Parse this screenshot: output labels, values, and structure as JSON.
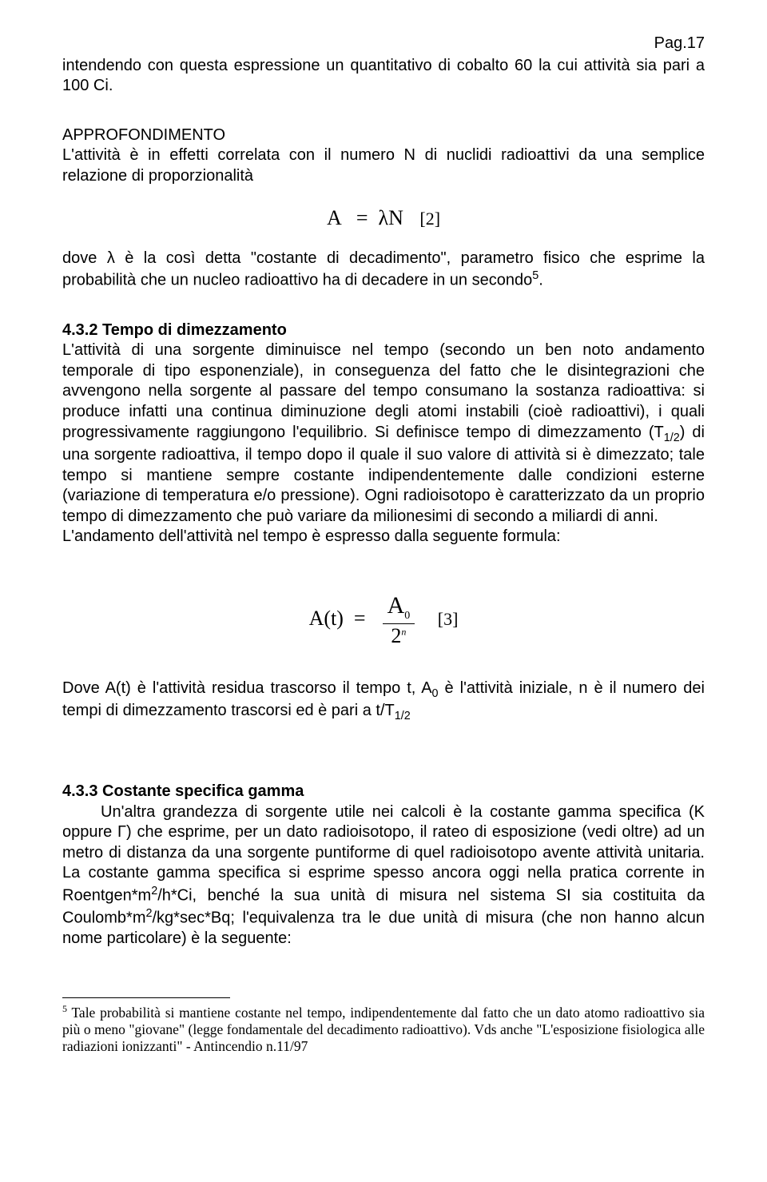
{
  "page": {
    "number_label": "Pag.17"
  },
  "p1": "intendendo con questa espressione un quantitativo di cobalto 60 la cui attività sia pari a 100 Ci.",
  "approf_heading": "APPROFONDIMENTO",
  "approf_body": "L'attività è in effetti correlata con il numero N di nuclidi radioattivi da una semplice relazione di proporzionalità",
  "eq2": {
    "lhs": "A",
    "eq": "=",
    "lam": "λ",
    "N": "N",
    "label": "[2]"
  },
  "after_eq2_a": "dove ",
  "after_eq2_lambda": "λ",
  "after_eq2_b": " è la così detta \"costante di decadimento\", parametro fisico che esprime la probabilità che un nucleo radioattivo ha di decadere in un secondo",
  "after_eq2_fn": "5",
  "after_eq2_c": ".",
  "sec432_num": "4.3.2 ",
  "sec432_title": "Tempo di dimezzamento",
  "sec432_body_a": "L'attività di una sorgente diminuisce nel tempo (secondo un ben noto andamento temporale di tipo esponenziale), in conseguenza del fatto che le disintegrazioni che avvengono nella sorgente al passare del tempo consumano la sostanza radioattiva: si produce infatti una continua diminuzione degli atomi instabili (cioè radioattivi), i quali progressivamente raggiungono l'equilibrio. Si definisce tempo di dimezzamento (T",
  "sec432_sub1": "1/2",
  "sec432_body_b": ") di una sorgente radioattiva, il tempo dopo il quale il suo valore di attività si è dimezzato; tale tempo si mantiene sempre costante indipendentemente dalle condizioni esterne (variazione di temperatura e/o pressione). Ogni radioisotopo è caratterizzato da un proprio tempo di dimezzamento che può variare da milionesimi di secondo a miliardi di anni.",
  "sec432_line2": "L'andamento dell'attività nel tempo è espresso dalla seguente formula:",
  "eq3": {
    "lhs": "A(t)",
    "eq": "=",
    "numA": "A",
    "numSub": "0",
    "denBase": "2",
    "denExp": "n",
    "label": "[3]"
  },
  "after_eq3_a": "Dove A(t) è l'attività residua trascorso il tempo t, A",
  "after_eq3_sub0": "0",
  "after_eq3_b": " è l'attività iniziale, n è il numero dei tempi di dimezzamento trascorsi ed è pari a t/T",
  "after_eq3_sub12": "1/2",
  "sec433_num": "4.3.3 ",
  "sec433_title": "Costante specifica gamma",
  "sec433_body_a": "Un'altra grandezza di sorgente utile nei calcoli è la costante gamma specifica (K oppure Γ) che esprime, per un dato radioisotopo, il rateo di esposizione (vedi oltre) ad un metro di distanza da una sorgente puntiforme di quel radioisotopo avente attività unitaria. La costante gamma specifica si esprime spesso ancora oggi nella pratica corrente in Roentgen*m",
  "sec433_sup1": "2",
  "sec433_body_b": "/h*Ci, benché la sua unità di misura nel sistema SI sia costituita da Coulomb*m",
  "sec433_sup2": "2",
  "sec433_body_c": "/kg*sec*Bq; l'equivalenza tra le due unità di misura (che non hanno alcun nome particolare) è la seguente:",
  "footnote": {
    "mark": "5",
    "text": " Tale probabilità si mantiene costante nel tempo, indipendentemente dal fatto che un dato atomo radioattivo sia più o meno \"giovane\" (legge fondamentale del decadimento radioattivo).  Vds anche \"L'esposizione fisiologica alle radiazioni ionizzanti\" - Antincendio n.11/97"
  }
}
